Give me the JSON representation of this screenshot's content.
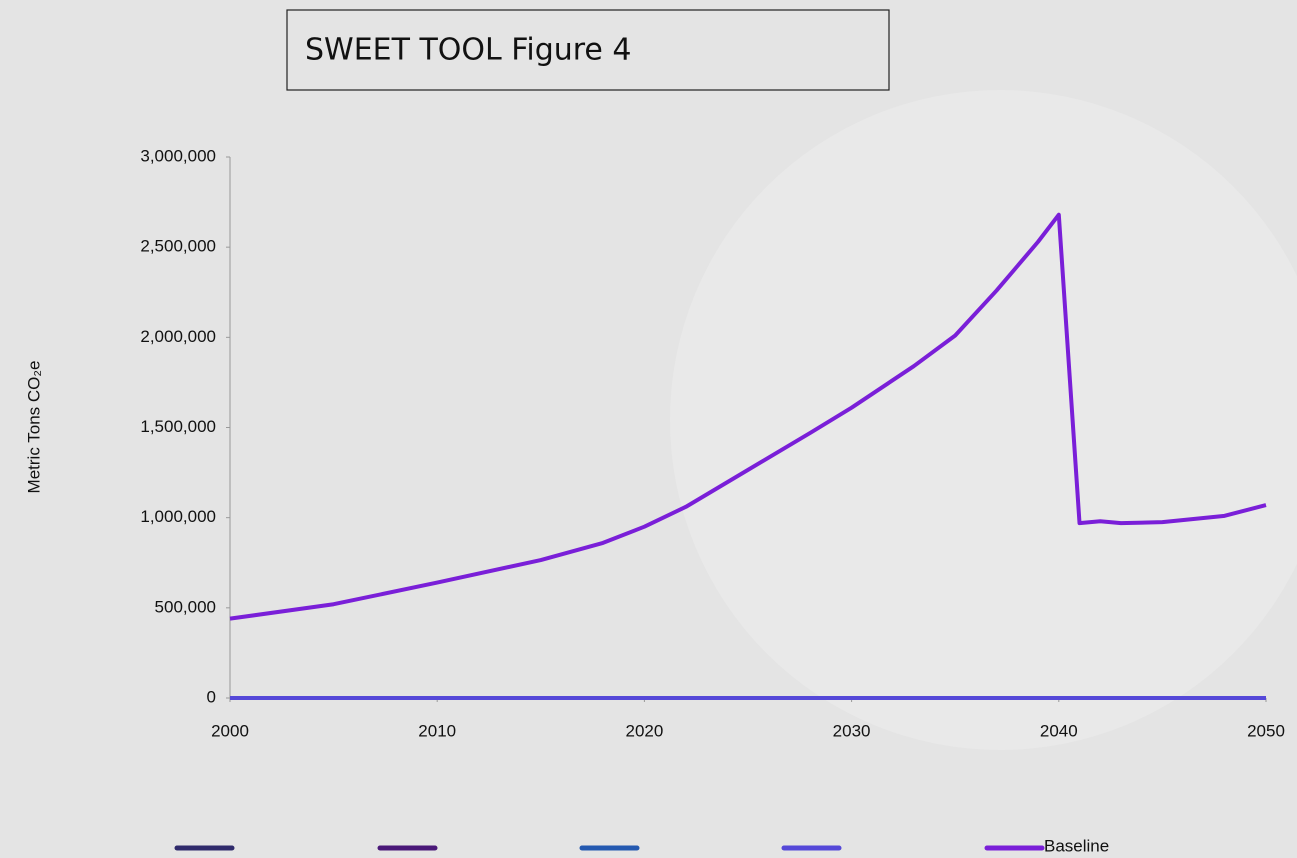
{
  "chart_data": {
    "type": "line",
    "title": "SWEET TOOL Figure 4",
    "y_label": "Metric Tons CO₂e",
    "x": [
      2000,
      2005,
      2010,
      2015,
      2018,
      2020,
      2022,
      2025,
      2028,
      2030,
      2033,
      2035,
      2037,
      2039,
      2040,
      2041,
      2042,
      2043,
      2045,
      2048,
      2050
    ],
    "series": [
      {
        "color": "#2f2a6b",
        "values": [
          0,
          0,
          0,
          0,
          0,
          0,
          0,
          0,
          0,
          0,
          0,
          0,
          0,
          0,
          0,
          0,
          0,
          0,
          0,
          0,
          0
        ]
      },
      {
        "color": "#4a1878",
        "values": [
          0,
          0,
          0,
          0,
          0,
          0,
          0,
          0,
          0,
          0,
          0,
          0,
          0,
          0,
          0,
          0,
          0,
          0,
          0,
          0,
          0
        ]
      },
      {
        "color": "#2459b0",
        "values": [
          0,
          0,
          0,
          0,
          0,
          0,
          0,
          0,
          0,
          0,
          0,
          0,
          0,
          0,
          0,
          0,
          0,
          0,
          0,
          0,
          0
        ]
      },
      {
        "color": "#5548d8",
        "values": [
          0,
          0,
          0,
          0,
          0,
          0,
          0,
          0,
          0,
          0,
          0,
          0,
          0,
          0,
          0,
          0,
          0,
          0,
          0,
          0,
          0
        ]
      },
      {
        "name": "Baseline",
        "color": "#7a1fd8",
        "values": [
          440000,
          520000,
          640000,
          765000,
          860000,
          950000,
          1060000,
          1265000,
          1470000,
          1610000,
          1840000,
          2010000,
          2260000,
          2530000,
          2680000,
          970000,
          980000,
          970000,
          975000,
          1010000,
          1070000
        ]
      }
    ],
    "xlim": [
      2000,
      2050
    ],
    "xticks": [
      2000,
      2010,
      2020,
      2030,
      2040,
      2050
    ],
    "ylim": [
      0,
      3000000
    ],
    "yticks": [
      0,
      {
        "value": 500000,
        "label": "500,000"
      },
      {
        "value": 1000000,
        "label": "1,000,000"
      },
      {
        "value": 1500000,
        "label": "1,500,000"
      },
      {
        "value": 2000000,
        "label": "2,000,000"
      },
      {
        "value": 2500000,
        "label": "2,500,000"
      },
      {
        "value": 3000000,
        "label": "3,000,000"
      }
    ],
    "legend": "bottom"
  }
}
